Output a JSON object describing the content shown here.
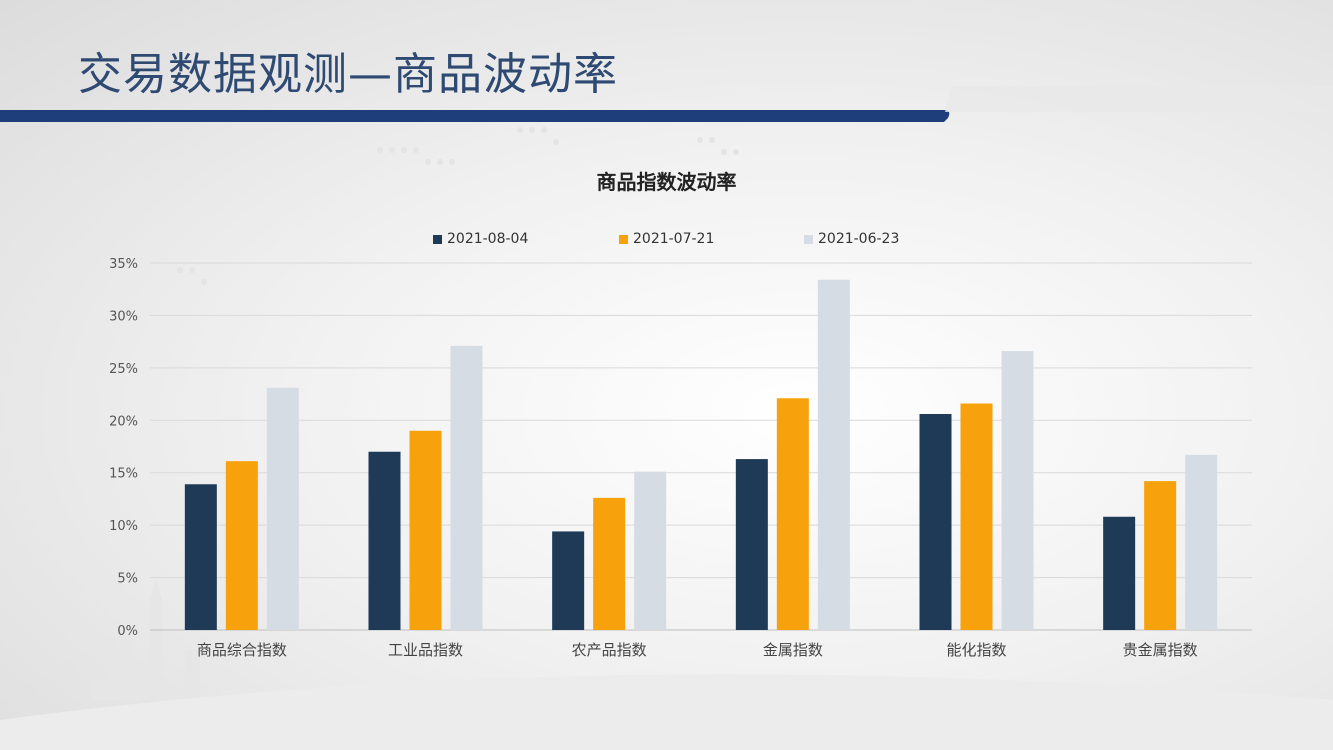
{
  "slide": {
    "title": "交易数据观测—商品波动率"
  },
  "colors": {
    "series": [
      "#1f3a57",
      "#f7a10c",
      "#d6dce4"
    ],
    "title": "#2f4a72",
    "band": "#1e3d7b"
  },
  "chart_data": {
    "type": "bar",
    "title": "商品指数波动率",
    "legend_position": "top",
    "grid": true,
    "categories": [
      "商品综合指数",
      "工业品指数",
      "农产品指数",
      "金属指数",
      "能化指数",
      "贵金属指数"
    ],
    "ylim": [
      0,
      35
    ],
    "ytick_step": 5,
    "ytick_labels": [
      "0%",
      "5%",
      "10%",
      "15%",
      "20%",
      "25%",
      "30%",
      "35%"
    ],
    "series": [
      {
        "name": "2021-08-04",
        "values": [
          13.9,
          17.0,
          9.4,
          16.3,
          20.6,
          10.8
        ]
      },
      {
        "name": "2021-07-21",
        "values": [
          16.1,
          19.0,
          12.6,
          22.1,
          21.6,
          14.2
        ]
      },
      {
        "name": "2021-06-23",
        "values": [
          23.1,
          27.1,
          15.1,
          33.4,
          26.6,
          16.7
        ]
      }
    ]
  }
}
